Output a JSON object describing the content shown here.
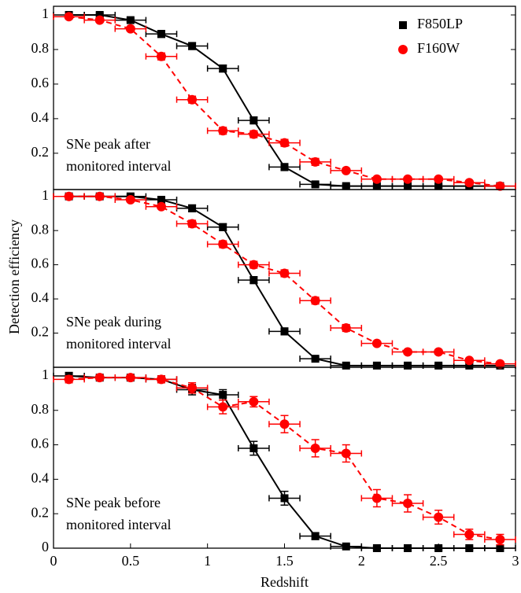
{
  "chart_data": [
    {
      "type": "scatter",
      "annotation": [
        "SNe peak after",
        "monitored interval"
      ],
      "x": [
        0.1,
        0.3,
        0.5,
        0.7,
        0.9,
        1.1,
        1.3,
        1.5,
        1.7,
        1.9,
        2.1,
        2.3,
        2.5,
        2.7,
        2.9
      ],
      "xerr": 0.1,
      "series": [
        {
          "name": "F850LP",
          "color": "#000000",
          "marker": "square",
          "line": "solid",
          "values": [
            1.0,
            1.0,
            0.97,
            0.89,
            0.82,
            0.69,
            0.39,
            0.12,
            0.02,
            0.01,
            0.01,
            0.01,
            0.01,
            0.01,
            0.01
          ],
          "yerr": [
            0.01,
            0.01,
            0.01,
            0.02,
            0.02,
            0.02,
            0.02,
            0.02,
            0.01,
            0.01,
            0.01,
            0.01,
            0.01,
            0.01,
            0.01
          ]
        },
        {
          "name": "F160W",
          "color": "#ff0000",
          "marker": "circle",
          "line": "dashed",
          "values": [
            0.99,
            0.97,
            0.92,
            0.76,
            0.51,
            0.33,
            0.31,
            0.26,
            0.15,
            0.1,
            0.05,
            0.05,
            0.05,
            0.03,
            0.01
          ],
          "yerr": [
            0.01,
            0.01,
            0.01,
            0.02,
            0.02,
            0.02,
            0.02,
            0.02,
            0.02,
            0.01,
            0.01,
            0.01,
            0.01,
            0.01,
            0.01
          ]
        }
      ],
      "xlim": [
        0,
        3
      ],
      "ylim": [
        -0.01,
        1.05
      ],
      "yticks": [
        0.2,
        0.4,
        0.6,
        0.8,
        1
      ]
    },
    {
      "type": "scatter",
      "annotation": [
        "SNe peak during",
        "monitored interval"
      ],
      "ylabel": "Detection efficiency",
      "x": [
        0.1,
        0.3,
        0.5,
        0.7,
        0.9,
        1.1,
        1.3,
        1.5,
        1.7,
        1.9,
        2.1,
        2.3,
        2.5,
        2.7,
        2.9
      ],
      "xerr": 0.1,
      "series": [
        {
          "color": "#000000",
          "marker": "square",
          "line": "solid",
          "values": [
            1.0,
            1.0,
            1.0,
            0.98,
            0.93,
            0.82,
            0.51,
            0.21,
            0.05,
            0.01,
            0.01,
            0.01,
            0.01,
            0.01,
            0.01
          ],
          "yerr": [
            0.01,
            0.01,
            0.01,
            0.01,
            0.02,
            0.02,
            0.02,
            0.02,
            0.01,
            0.01,
            0.01,
            0.01,
            0.01,
            0.01,
            0.01
          ]
        },
        {
          "color": "#ff0000",
          "marker": "circle",
          "line": "dashed",
          "values": [
            1.0,
            1.0,
            0.98,
            0.94,
            0.84,
            0.72,
            0.6,
            0.55,
            0.39,
            0.23,
            0.14,
            0.09,
            0.09,
            0.04,
            0.02
          ],
          "yerr": [
            0.01,
            0.01,
            0.01,
            0.01,
            0.02,
            0.02,
            0.02,
            0.02,
            0.02,
            0.02,
            0.01,
            0.01,
            0.01,
            0.01,
            0.01
          ]
        }
      ],
      "xlim": [
        0,
        3
      ],
      "ylim": [
        0,
        1.04
      ],
      "yticks": [
        0.2,
        0.4,
        0.6,
        0.8,
        1
      ]
    },
    {
      "type": "scatter",
      "annotation": [
        "SNe peak before",
        "monitored interval"
      ],
      "xlabel": "Redshift",
      "x": [
        0.1,
        0.3,
        0.5,
        0.7,
        0.9,
        1.1,
        1.3,
        1.5,
        1.7,
        1.9,
        2.1,
        2.3,
        2.5,
        2.7,
        2.9
      ],
      "xerr": 0.1,
      "series": [
        {
          "color": "#000000",
          "marker": "square",
          "line": "solid",
          "values": [
            1.0,
            0.99,
            0.99,
            0.98,
            0.92,
            0.89,
            0.58,
            0.29,
            0.07,
            0.01,
            0.0,
            0.0,
            0.0,
            0.0,
            0.0
          ],
          "yerr": [
            0.02,
            0.01,
            0.01,
            0.02,
            0.03,
            0.03,
            0.04,
            0.04,
            0.02,
            0.01,
            0.01,
            0.01,
            0.01,
            0.01,
            0.01
          ]
        },
        {
          "color": "#ff0000",
          "marker": "circle",
          "line": "dashed",
          "values": [
            0.98,
            0.99,
            0.99,
            0.98,
            0.93,
            0.82,
            0.85,
            0.72,
            0.58,
            0.55,
            0.29,
            0.26,
            0.18,
            0.08,
            0.05
          ],
          "yerr": [
            0.02,
            0.01,
            0.01,
            0.02,
            0.03,
            0.04,
            0.03,
            0.05,
            0.05,
            0.05,
            0.05,
            0.05,
            0.04,
            0.03,
            0.03
          ]
        }
      ],
      "xlim": [
        0,
        3
      ],
      "ylim": [
        0,
        1.05
      ],
      "yticks": [
        0,
        0.2,
        0.4,
        0.6,
        0.8,
        1
      ],
      "xticks": [
        0,
        0.5,
        1,
        1.5,
        2,
        2.5,
        3
      ]
    }
  ]
}
